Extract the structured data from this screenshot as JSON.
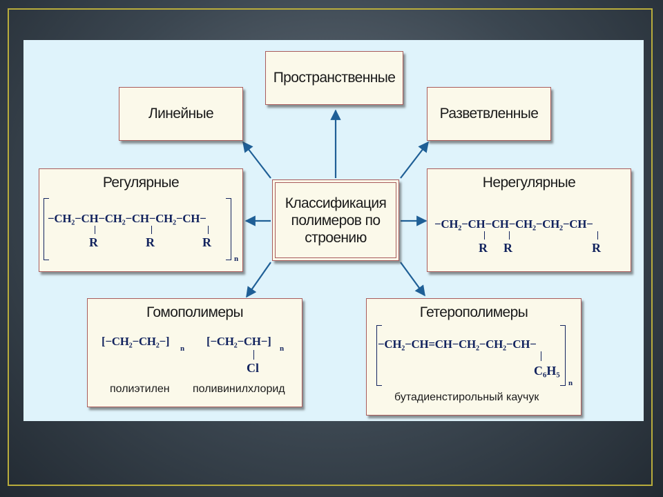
{
  "diagram": {
    "center": {
      "line1": "Классификация",
      "line2": "полимеров по",
      "line3": "строению"
    },
    "linear": "Линейные",
    "spatial": "Пространственные",
    "branched": "Разветвленные",
    "regular": {
      "title": "Регулярные",
      "chain": "−CH₂−CH−CH₂−CH−CH₂−CH−",
      "r": "R",
      "n": "n"
    },
    "irregular": {
      "title": "Нерегулярные",
      "chain": "−CH₂−CH−CH−CH₂−CH₂−CH−",
      "r": "R"
    },
    "homo": {
      "title": "Гомополимеры",
      "formula1": "[−CH₂−CH₂−]",
      "formula2": "[−CH₂−CH−]",
      "n": "n",
      "cl": "Cl",
      "caption1": "полиэтилен",
      "caption2": "поливинилхлорид"
    },
    "hetero": {
      "title": "Гетерополимеры",
      "chain": "−CH₂−CH=CH−CH₂−CH₂−CH−",
      "sub": "C₆H₅",
      "n": "n",
      "caption": "бутадиенстирольный каучук"
    }
  },
  "colors": {
    "arrow": "#1f5f96",
    "box_border": "#a85a5a",
    "formula": "#12235e",
    "frame": "#b9ad3c",
    "panel": "#dff3fb"
  }
}
